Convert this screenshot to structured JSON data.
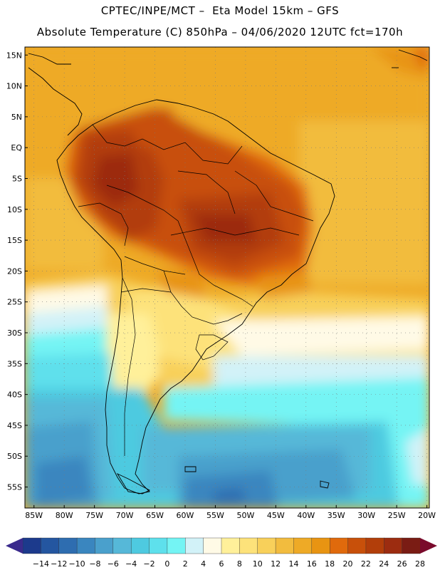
{
  "header": {
    "line1": "CPTEC/INPE/MCT –  Eta Model 15km – GFS",
    "line2": "Absolute Temperature (C) 850hPa – 04/06/2020 12UTC fct=170h"
  },
  "map": {
    "lat_labels": [
      "15N",
      "10N",
      "5N",
      "EQ",
      "5S",
      "10S",
      "15S",
      "20S",
      "25S",
      "30S",
      "35S",
      "40S",
      "45S",
      "50S",
      "55S"
    ],
    "lon_labels": [
      "85W",
      "80W",
      "75W",
      "70W",
      "65W",
      "60W",
      "55W",
      "50W",
      "45W",
      "40W",
      "35W",
      "30W",
      "25W",
      "20W"
    ]
  },
  "colorbar": {
    "labels": [
      "-14",
      "-12",
      "-10",
      "-8",
      "-6",
      "-4",
      "-2",
      "0",
      "2",
      "4",
      "6",
      "8",
      "10",
      "12",
      "14",
      "16",
      "18",
      "20",
      "22",
      "24",
      "26",
      "28"
    ],
    "colors": [
      "#1c3a8c",
      "#2456a0",
      "#2e6db0",
      "#3a86bf",
      "#4aa0cc",
      "#56b8d8",
      "#4ecae0",
      "#5ee0ec",
      "#74f4f4",
      "#d2f2f8",
      "#fffae6",
      "#fff09a",
      "#fde27a",
      "#f8d05a",
      "#f2bc3e",
      "#eeaa26",
      "#e89412",
      "#e06a0c",
      "#c8500a",
      "#b23e0a",
      "#9c2c10",
      "#7a1c14"
    ],
    "under_color": "#3a2a8c",
    "over_color": "#7a0a2c"
  }
}
